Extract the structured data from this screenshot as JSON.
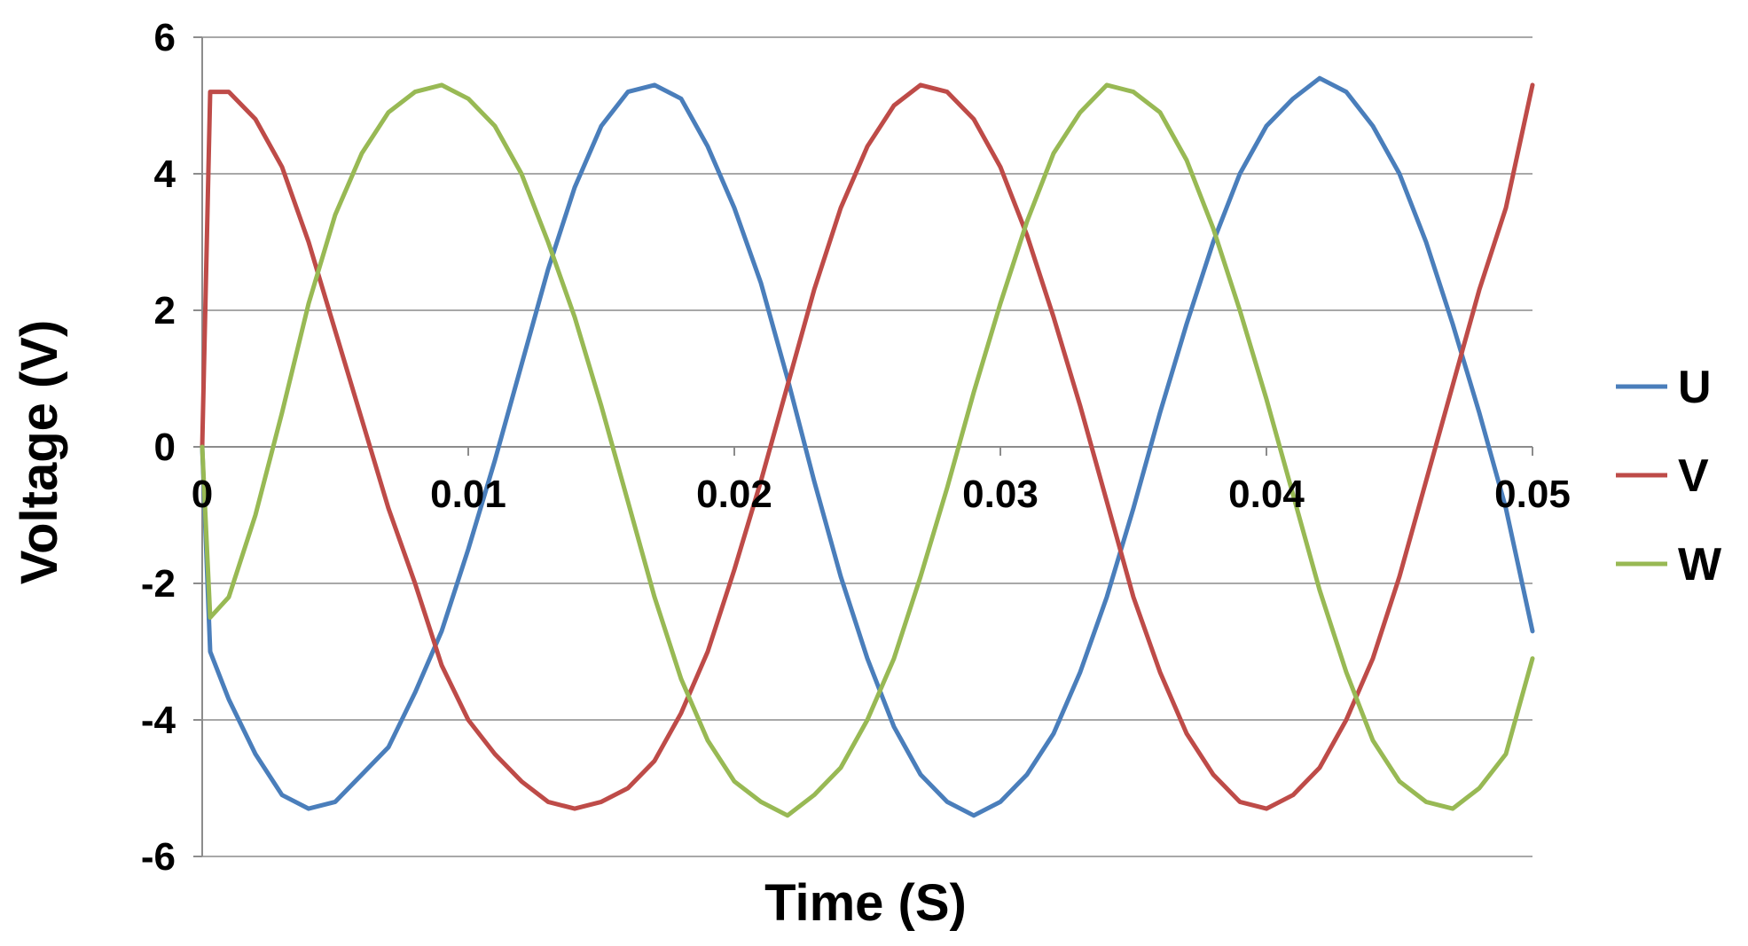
{
  "chart_data": {
    "type": "line",
    "title": "",
    "xlabel": "Time (S)",
    "ylabel": "Voltage (V)",
    "xlim": [
      0,
      0.05
    ],
    "ylim": [
      -6,
      6
    ],
    "x_ticks": [
      0,
      0.01,
      0.02,
      0.03,
      0.04,
      0.05
    ],
    "x_tick_labels": [
      "0",
      "0.01",
      "0.02",
      "0.03",
      "0.04",
      "0.05"
    ],
    "y_ticks": [
      -6,
      -4,
      -2,
      0,
      2,
      4,
      6
    ],
    "y_tick_labels": [
      "-6",
      "-4",
      "-2",
      "0",
      "2",
      "4",
      "6"
    ],
    "grid": "horizontal",
    "legend_position": "right",
    "series": [
      {
        "name": "U",
        "color": "#4a7ebb",
        "points": [
          [
            0,
            0
          ],
          [
            0.0003,
            -3.0
          ],
          [
            0.001,
            -3.7
          ],
          [
            0.002,
            -4.5
          ],
          [
            0.003,
            -5.1
          ],
          [
            0.004,
            -5.3
          ],
          [
            0.005,
            -5.2
          ],
          [
            0.006,
            -4.8
          ],
          [
            0.007,
            -4.4
          ],
          [
            0.008,
            -3.6
          ],
          [
            0.009,
            -2.7
          ],
          [
            0.01,
            -1.5
          ],
          [
            0.011,
            -0.2
          ],
          [
            0.012,
            1.2
          ],
          [
            0.013,
            2.6
          ],
          [
            0.014,
            3.8
          ],
          [
            0.015,
            4.7
          ],
          [
            0.016,
            5.2
          ],
          [
            0.017,
            5.3
          ],
          [
            0.018,
            5.1
          ],
          [
            0.019,
            4.4
          ],
          [
            0.02,
            3.5
          ],
          [
            0.021,
            2.4
          ],
          [
            0.022,
            1.0
          ],
          [
            0.023,
            -0.5
          ],
          [
            0.024,
            -1.9
          ],
          [
            0.025,
            -3.1
          ],
          [
            0.026,
            -4.1
          ],
          [
            0.027,
            -4.8
          ],
          [
            0.028,
            -5.2
          ],
          [
            0.029,
            -5.4
          ],
          [
            0.03,
            -5.2
          ],
          [
            0.031,
            -4.8
          ],
          [
            0.032,
            -4.2
          ],
          [
            0.033,
            -3.3
          ],
          [
            0.034,
            -2.2
          ],
          [
            0.035,
            -0.9
          ],
          [
            0.036,
            0.5
          ],
          [
            0.037,
            1.8
          ],
          [
            0.038,
            3.0
          ],
          [
            0.039,
            4.0
          ],
          [
            0.04,
            4.7
          ],
          [
            0.041,
            5.1
          ],
          [
            0.042,
            5.4
          ],
          [
            0.043,
            5.2
          ],
          [
            0.044,
            4.7
          ],
          [
            0.045,
            4.0
          ],
          [
            0.046,
            3.0
          ],
          [
            0.047,
            1.8
          ],
          [
            0.048,
            0.5
          ],
          [
            0.049,
            -0.9
          ],
          [
            0.05,
            -2.7
          ]
        ]
      },
      {
        "name": "V",
        "color": "#be4b48",
        "points": [
          [
            0,
            0
          ],
          [
            0.0003,
            5.2
          ],
          [
            0.001,
            5.2
          ],
          [
            0.002,
            4.8
          ],
          [
            0.003,
            4.1
          ],
          [
            0.004,
            3.0
          ],
          [
            0.005,
            1.7
          ],
          [
            0.006,
            0.4
          ],
          [
            0.007,
            -0.9
          ],
          [
            0.008,
            -2.0
          ],
          [
            0.009,
            -3.2
          ],
          [
            0.01,
            -4.0
          ],
          [
            0.011,
            -4.5
          ],
          [
            0.012,
            -4.9
          ],
          [
            0.013,
            -5.2
          ],
          [
            0.014,
            -5.3
          ],
          [
            0.015,
            -5.2
          ],
          [
            0.016,
            -5.0
          ],
          [
            0.017,
            -4.6
          ],
          [
            0.018,
            -3.9
          ],
          [
            0.019,
            -3.0
          ],
          [
            0.02,
            -1.8
          ],
          [
            0.021,
            -0.5
          ],
          [
            0.022,
            0.9
          ],
          [
            0.023,
            2.3
          ],
          [
            0.024,
            3.5
          ],
          [
            0.025,
            4.4
          ],
          [
            0.026,
            5.0
          ],
          [
            0.027,
            5.3
          ],
          [
            0.028,
            5.2
          ],
          [
            0.029,
            4.8
          ],
          [
            0.03,
            4.1
          ],
          [
            0.031,
            3.1
          ],
          [
            0.032,
            1.9
          ],
          [
            0.033,
            0.6
          ],
          [
            0.034,
            -0.8
          ],
          [
            0.035,
            -2.2
          ],
          [
            0.036,
            -3.3
          ],
          [
            0.037,
            -4.2
          ],
          [
            0.038,
            -4.8
          ],
          [
            0.039,
            -5.2
          ],
          [
            0.04,
            -5.3
          ],
          [
            0.041,
            -5.1
          ],
          [
            0.042,
            -4.7
          ],
          [
            0.043,
            -4.0
          ],
          [
            0.044,
            -3.1
          ],
          [
            0.045,
            -1.9
          ],
          [
            0.046,
            -0.5
          ],
          [
            0.047,
            0.9
          ],
          [
            0.048,
            2.3
          ],
          [
            0.049,
            3.5
          ],
          [
            0.05,
            5.3
          ]
        ]
      },
      {
        "name": "W",
        "color": "#98b954",
        "points": [
          [
            0,
            0
          ],
          [
            0.0003,
            -2.5
          ],
          [
            0.001,
            -2.2
          ],
          [
            0.002,
            -1.0
          ],
          [
            0.003,
            0.5
          ],
          [
            0.004,
            2.1
          ],
          [
            0.005,
            3.4
          ],
          [
            0.006,
            4.3
          ],
          [
            0.007,
            4.9
          ],
          [
            0.008,
            5.2
          ],
          [
            0.009,
            5.3
          ],
          [
            0.01,
            5.1
          ],
          [
            0.011,
            4.7
          ],
          [
            0.012,
            4.0
          ],
          [
            0.013,
            3.0
          ],
          [
            0.014,
            1.9
          ],
          [
            0.015,
            0.6
          ],
          [
            0.016,
            -0.8
          ],
          [
            0.017,
            -2.2
          ],
          [
            0.018,
            -3.4
          ],
          [
            0.019,
            -4.3
          ],
          [
            0.02,
            -4.9
          ],
          [
            0.021,
            -5.2
          ],
          [
            0.022,
            -5.4
          ],
          [
            0.023,
            -5.1
          ],
          [
            0.024,
            -4.7
          ],
          [
            0.025,
            -4.0
          ],
          [
            0.026,
            -3.1
          ],
          [
            0.027,
            -1.9
          ],
          [
            0.028,
            -0.6
          ],
          [
            0.029,
            0.8
          ],
          [
            0.03,
            2.1
          ],
          [
            0.031,
            3.3
          ],
          [
            0.032,
            4.3
          ],
          [
            0.033,
            4.9
          ],
          [
            0.034,
            5.3
          ],
          [
            0.035,
            5.2
          ],
          [
            0.036,
            4.9
          ],
          [
            0.037,
            4.2
          ],
          [
            0.038,
            3.2
          ],
          [
            0.039,
            2.0
          ],
          [
            0.04,
            0.7
          ],
          [
            0.041,
            -0.7
          ],
          [
            0.042,
            -2.1
          ],
          [
            0.043,
            -3.3
          ],
          [
            0.044,
            -4.3
          ],
          [
            0.045,
            -4.9
          ],
          [
            0.046,
            -5.2
          ],
          [
            0.047,
            -5.3
          ],
          [
            0.048,
            -5.0
          ],
          [
            0.049,
            -4.5
          ],
          [
            0.05,
            -3.1
          ]
        ]
      }
    ]
  }
}
